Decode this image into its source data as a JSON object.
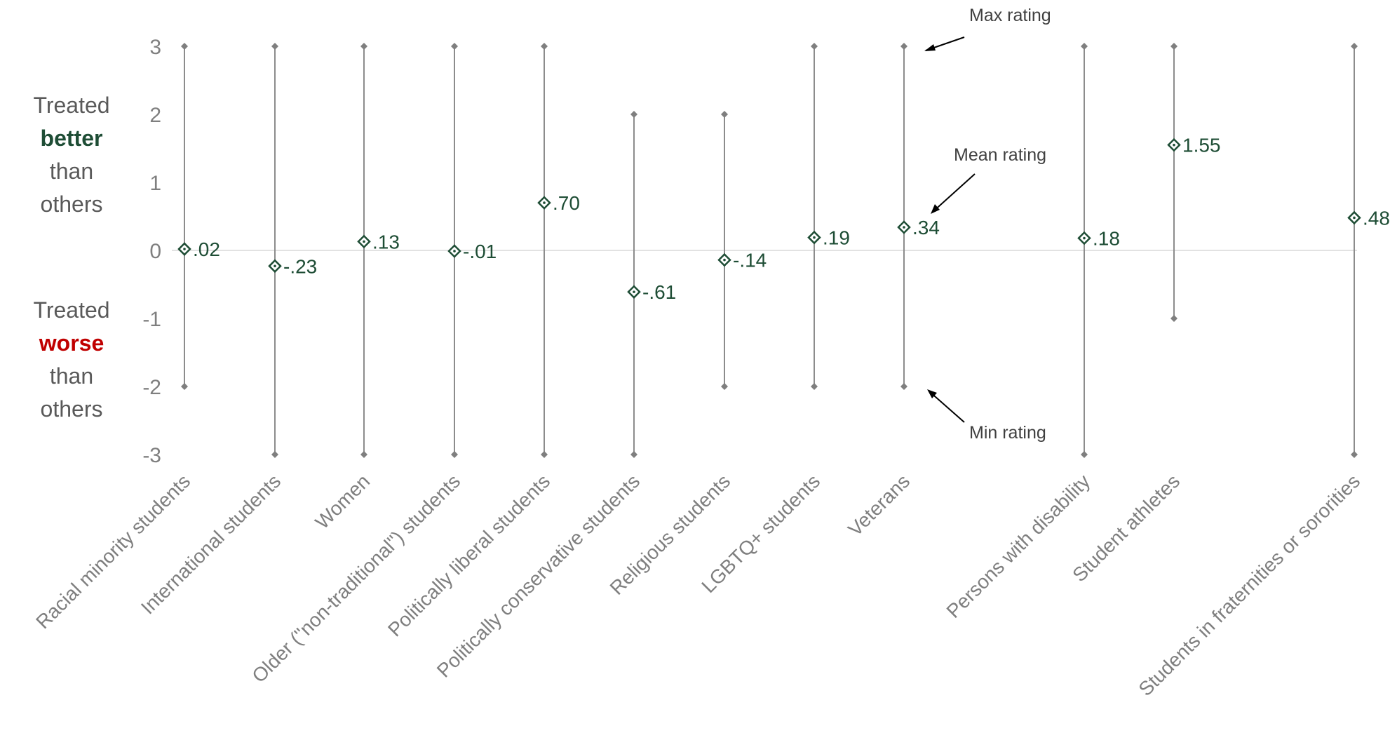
{
  "colors": {
    "better": "#1e4d35",
    "worse": "#c00000",
    "marker": "#1e4d35",
    "range_line": "#8c8c8c",
    "axis_text": "#7f7f7f",
    "label_text": "#595959"
  },
  "side_labels": {
    "better": {
      "line1": "Treated",
      "emphasis": "better",
      "line3": "than",
      "line4": "others"
    },
    "worse": {
      "line1": "Treated",
      "emphasis": "worse",
      "line3": "than",
      "line4": "others"
    }
  },
  "annotations": {
    "max": "Max rating",
    "mean": "Mean rating",
    "min": "Min rating"
  },
  "chart_data": {
    "type": "scatter",
    "title": "",
    "xlabel": "",
    "ylabel": "",
    "ylim": [
      -3,
      3
    ],
    "yticks": [
      "-3",
      "-2",
      "-1",
      "0",
      "1",
      "2",
      "3"
    ],
    "categories": [
      "Racial minority students",
      "International students",
      "Women",
      "Older (\"non-traditional\") students",
      "Politically liberal students",
      "Politically conservative students",
      "Religious students",
      "LGBTQ+ students",
      "Veterans",
      "Persons with disability",
      "Student athletes",
      "Students in fraternities or sororities"
    ],
    "series": [
      {
        "name": "Max rating",
        "values": [
          3,
          3,
          3,
          3,
          3,
          2,
          2,
          3,
          3,
          3,
          3,
          3
        ]
      },
      {
        "name": "Mean rating",
        "values": [
          0.02,
          -0.23,
          0.13,
          -0.01,
          0.7,
          -0.61,
          -0.14,
          0.19,
          0.34,
          0.18,
          1.55,
          0.48
        ]
      },
      {
        "name": "Min rating",
        "values": [
          -2,
          -3,
          -3,
          -3,
          -3,
          -3,
          -2,
          -2,
          -2,
          -3,
          -1,
          -3
        ]
      }
    ],
    "mean_labels": [
      ".02",
      "-.23",
      ".13",
      "-.01",
      ".70",
      "-.61",
      "-.14",
      ".19",
      ".34",
      ".18",
      "1.55",
      ".48"
    ]
  }
}
